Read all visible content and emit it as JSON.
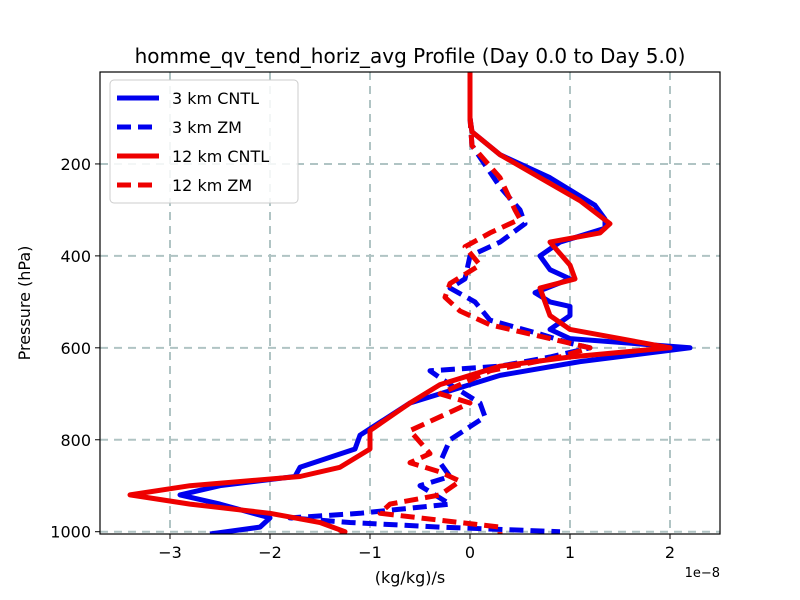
{
  "chart_data": {
    "type": "line",
    "title": "homme_qv_tend_horiz_avg Profile (Day 0.0 to Day 5.0)",
    "xlabel": "(kg/kg)/s",
    "ylabel": "Pressure (hPa)",
    "x_offset_text": "1e−8",
    "xlim": [
      -3.7,
      2.5
    ],
    "ylim": [
      1005,
      0
    ],
    "grid": true,
    "legend_location": "upper-left",
    "x_ticks": [
      {
        "value": -3,
        "label": "−3"
      },
      {
        "value": -2,
        "label": "−2"
      },
      {
        "value": -1,
        "label": "−1"
      },
      {
        "value": 0,
        "label": "0"
      },
      {
        "value": 1,
        "label": "1"
      },
      {
        "value": 2,
        "label": "2"
      }
    ],
    "y_ticks": [
      {
        "value": 200,
        "label": "200"
      },
      {
        "value": 400,
        "label": "400"
      },
      {
        "value": 600,
        "label": "600"
      },
      {
        "value": 800,
        "label": "800"
      },
      {
        "value": 1000,
        "label": "1000"
      }
    ],
    "series": [
      {
        "name": "3 km CNTL",
        "color": "#0000ee",
        "dashed": false,
        "points": [
          [
            0,
            0
          ],
          [
            0,
            100
          ],
          [
            0.02,
            130
          ],
          [
            0.3,
            180
          ],
          [
            0.8,
            230
          ],
          [
            1.25,
            290
          ],
          [
            1.35,
            320
          ],
          [
            1.35,
            340
          ],
          [
            0.9,
            370
          ],
          [
            0.7,
            400
          ],
          [
            0.8,
            430
          ],
          [
            1.0,
            450
          ],
          [
            0.65,
            480
          ],
          [
            0.8,
            500
          ],
          [
            1.0,
            510
          ],
          [
            1.0,
            530
          ],
          [
            0.8,
            560
          ],
          [
            1.0,
            580
          ],
          [
            2.2,
            600
          ],
          [
            1.1,
            630
          ],
          [
            0.3,
            660
          ],
          [
            0,
            680
          ],
          [
            -0.6,
            720
          ],
          [
            -1.1,
            790
          ],
          [
            -1.15,
            820
          ],
          [
            -1.7,
            860
          ],
          [
            -1.75,
            880
          ],
          [
            -2.5,
            900
          ],
          [
            -2.9,
            920
          ],
          [
            -2.5,
            940
          ],
          [
            -2,
            970
          ],
          [
            -2.1,
            990
          ],
          [
            -2.6,
            1005
          ]
        ]
      },
      {
        "name": "3 km ZM",
        "color": "#0000ee",
        "dashed": true,
        "points": [
          [
            0,
            0
          ],
          [
            0,
            100
          ],
          [
            0.02,
            160
          ],
          [
            0.3,
            250
          ],
          [
            0.5,
            300
          ],
          [
            0.55,
            330
          ],
          [
            0.3,
            370
          ],
          [
            0,
            400
          ],
          [
            -0.05,
            450
          ],
          [
            -0.2,
            470
          ],
          [
            0.05,
            500
          ],
          [
            0.2,
            540
          ],
          [
            0.7,
            570
          ],
          [
            1.0,
            590
          ],
          [
            1.2,
            600
          ],
          [
            0.8,
            620
          ],
          [
            0.3,
            640
          ],
          [
            -0.4,
            650
          ],
          [
            -0.2,
            680
          ],
          [
            0.1,
            720
          ],
          [
            0.15,
            750
          ],
          [
            -0.2,
            800
          ],
          [
            -0.3,
            850
          ],
          [
            -0.2,
            880
          ],
          [
            -0.5,
            900
          ],
          [
            -0.2,
            940
          ],
          [
            -1.1,
            960
          ],
          [
            -1.8,
            970
          ],
          [
            -1.2,
            980
          ],
          [
            -0.3,
            990
          ],
          [
            0.9,
            1000
          ]
        ]
      },
      {
        "name": "12 km CNTL",
        "color": "#ee0000",
        "dashed": false,
        "points": [
          [
            0,
            0
          ],
          [
            0,
            100
          ],
          [
            0.02,
            130
          ],
          [
            0.3,
            180
          ],
          [
            0.7,
            230
          ],
          [
            1.1,
            280
          ],
          [
            1.4,
            330
          ],
          [
            1.3,
            350
          ],
          [
            0.8,
            370
          ],
          [
            1.0,
            420
          ],
          [
            1.05,
            450
          ],
          [
            0.7,
            470
          ],
          [
            0.75,
            500
          ],
          [
            0.8,
            530
          ],
          [
            1.0,
            560
          ],
          [
            1.5,
            580
          ],
          [
            2.0,
            600
          ],
          [
            1.0,
            620
          ],
          [
            0.3,
            640
          ],
          [
            -0.3,
            680
          ],
          [
            -0.6,
            720
          ],
          [
            -1.0,
            780
          ],
          [
            -1.0,
            820
          ],
          [
            -1.3,
            860
          ],
          [
            -1.7,
            880
          ],
          [
            -2.8,
            900
          ],
          [
            -3.4,
            920
          ],
          [
            -2.8,
            940
          ],
          [
            -2.0,
            960
          ],
          [
            -1.5,
            980
          ],
          [
            -1.25,
            1000
          ],
          [
            -1.3,
            1005
          ]
        ]
      },
      {
        "name": "12 km ZM",
        "color": "#ee0000",
        "dashed": true,
        "points": [
          [
            0,
            0
          ],
          [
            0,
            100
          ],
          [
            0.02,
            160
          ],
          [
            0.3,
            230
          ],
          [
            0.45,
            300
          ],
          [
            0.5,
            320
          ],
          [
            0.2,
            350
          ],
          [
            -0.05,
            380
          ],
          [
            0.1,
            420
          ],
          [
            -0.2,
            460
          ],
          [
            -0.25,
            490
          ],
          [
            -0.1,
            520
          ],
          [
            0.2,
            550
          ],
          [
            0.8,
            580
          ],
          [
            1.2,
            600
          ],
          [
            0.9,
            620
          ],
          [
            0.2,
            650
          ],
          [
            -0.3,
            700
          ],
          [
            0,
            720
          ],
          [
            -0.6,
            780
          ],
          [
            -0.4,
            830
          ],
          [
            -0.6,
            850
          ],
          [
            -0.3,
            870
          ],
          [
            -0.1,
            890
          ],
          [
            -0.3,
            920
          ],
          [
            -0.8,
            940
          ],
          [
            -0.9,
            960
          ],
          [
            -0.5,
            970
          ],
          [
            0.3,
            990
          ],
          [
            0.3,
            1005
          ]
        ]
      }
    ]
  }
}
